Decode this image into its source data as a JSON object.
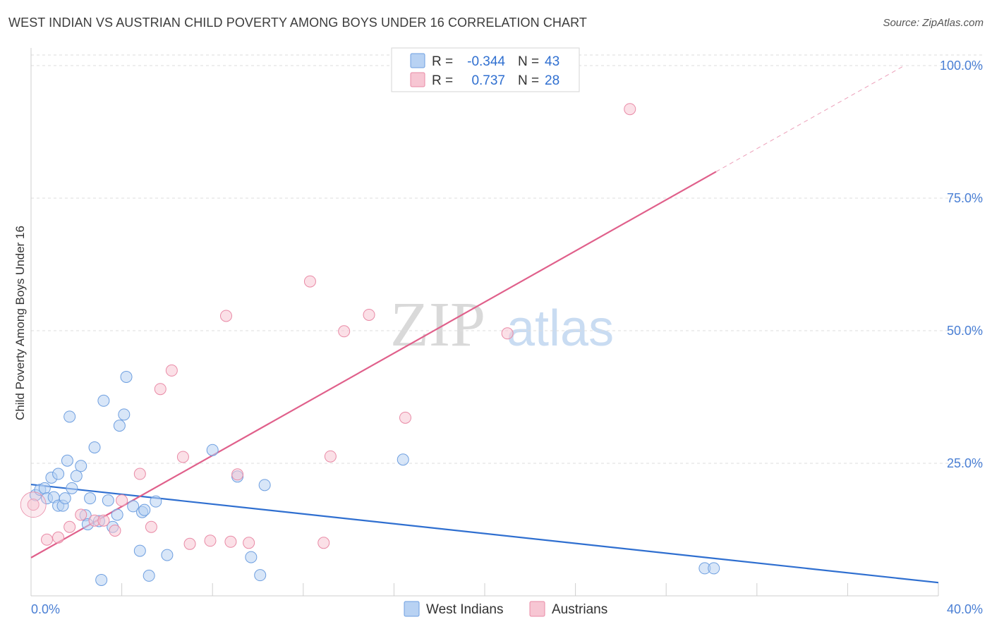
{
  "title": "WEST INDIAN VS AUSTRIAN CHILD POVERTY AMONG BOYS UNDER 16 CORRELATION CHART",
  "source": "Source: ZipAtlas.com",
  "watermark": {
    "zip": "ZIP",
    "atlas": "atlas"
  },
  "colors": {
    "west_indian_fill": "#b8d2f3",
    "west_indian_stroke": "#6e9fe0",
    "west_indian_line": "#2f6fd0",
    "austrian_fill": "#f7c6d3",
    "austrian_stroke": "#e98aa6",
    "austrian_line": "#e0608b",
    "tick": "#4a7fd4",
    "grid": "#dddddd"
  },
  "legend": {
    "rows": [
      {
        "r_label": "R =",
        "r_value": "-0.344",
        "n_label": "N =",
        "n_value": "43"
      },
      {
        "r_label": "R =",
        "r_value": "0.737",
        "n_label": "N =",
        "n_value": "28"
      }
    ]
  },
  "bottom_legend": [
    "West Indians",
    "Austrians"
  ],
  "chart_data": {
    "type": "scatter",
    "title": "WEST INDIAN VS AUSTRIAN CHILD POVERTY AMONG BOYS UNDER 16 CORRELATION CHART",
    "xlabel": "",
    "ylabel": "Child Poverty Among Boys Under 16",
    "xlim": [
      0,
      40
    ],
    "ylim": [
      0,
      102
    ],
    "x_tick_labels": [
      "0.0%",
      "40.0%"
    ],
    "y_ticks": [
      25,
      50,
      75,
      100
    ],
    "y_tick_labels": [
      "25.0%",
      "50.0%",
      "75.0%",
      "100.0%"
    ],
    "grid": true,
    "legend_position": "top-center",
    "series": [
      {
        "name": "West Indians",
        "r": -0.344,
        "n": 43,
        "trend": {
          "x": [
            0,
            40
          ],
          "y": [
            21.0,
            2.5
          ],
          "dashed_from": null
        },
        "points": [
          [
            0.2,
            19.0
          ],
          [
            0.4,
            20.0
          ],
          [
            0.6,
            20.3
          ],
          [
            0.7,
            18.4
          ],
          [
            0.9,
            22.3
          ],
          [
            1.0,
            18.6
          ],
          [
            1.2,
            23.0
          ],
          [
            1.2,
            17.0
          ],
          [
            1.4,
            17.0
          ],
          [
            1.5,
            18.4
          ],
          [
            1.6,
            25.5
          ],
          [
            1.7,
            33.8
          ],
          [
            1.8,
            20.3
          ],
          [
            2.0,
            22.6
          ],
          [
            2.2,
            24.5
          ],
          [
            2.4,
            15.2
          ],
          [
            2.5,
            13.5
          ],
          [
            2.6,
            18.4
          ],
          [
            2.8,
            28.0
          ],
          [
            3.0,
            14.1
          ],
          [
            3.1,
            3.0
          ],
          [
            3.2,
            36.8
          ],
          [
            3.4,
            18.0
          ],
          [
            3.6,
            13.0
          ],
          [
            3.8,
            15.3
          ],
          [
            3.9,
            32.1
          ],
          [
            4.1,
            34.2
          ],
          [
            4.2,
            41.3
          ],
          [
            4.5,
            16.9
          ],
          [
            4.8,
            8.5
          ],
          [
            4.9,
            15.8
          ],
          [
            5.0,
            16.2
          ],
          [
            5.2,
            3.8
          ],
          [
            5.5,
            17.8
          ],
          [
            6.0,
            7.7
          ],
          [
            8.0,
            27.5
          ],
          [
            9.1,
            22.5
          ],
          [
            9.7,
            7.3
          ],
          [
            10.1,
            3.9
          ],
          [
            10.3,
            20.9
          ],
          [
            16.4,
            25.7
          ],
          [
            29.7,
            5.2
          ],
          [
            30.1,
            5.2
          ]
        ]
      },
      {
        "name": "Austrians",
        "r": 0.737,
        "n": 28,
        "trend": {
          "x": [
            0,
            38.5
          ],
          "y": [
            7.2,
            100
          ],
          "dashed_from": 30.2
        },
        "points": [
          [
            0.1,
            17.2
          ],
          [
            0.7,
            10.6
          ],
          [
            1.2,
            11.0
          ],
          [
            1.7,
            13.0
          ],
          [
            2.2,
            15.3
          ],
          [
            2.8,
            14.2
          ],
          [
            3.2,
            14.2
          ],
          [
            3.7,
            12.3
          ],
          [
            4.0,
            18.0
          ],
          [
            4.8,
            23.0
          ],
          [
            5.3,
            13.0
          ],
          [
            5.7,
            39.0
          ],
          [
            6.2,
            42.5
          ],
          [
            6.7,
            26.2
          ],
          [
            7.0,
            9.8
          ],
          [
            7.9,
            10.4
          ],
          [
            8.6,
            52.8
          ],
          [
            8.8,
            10.2
          ],
          [
            9.1,
            22.9
          ],
          [
            9.6,
            10.0
          ],
          [
            12.3,
            59.3
          ],
          [
            12.9,
            10.0
          ],
          [
            13.2,
            26.3
          ],
          [
            13.8,
            49.9
          ],
          [
            14.9,
            53.0
          ],
          [
            16.5,
            33.6
          ],
          [
            21.0,
            49.5
          ],
          [
            26.4,
            91.8
          ]
        ]
      }
    ]
  }
}
